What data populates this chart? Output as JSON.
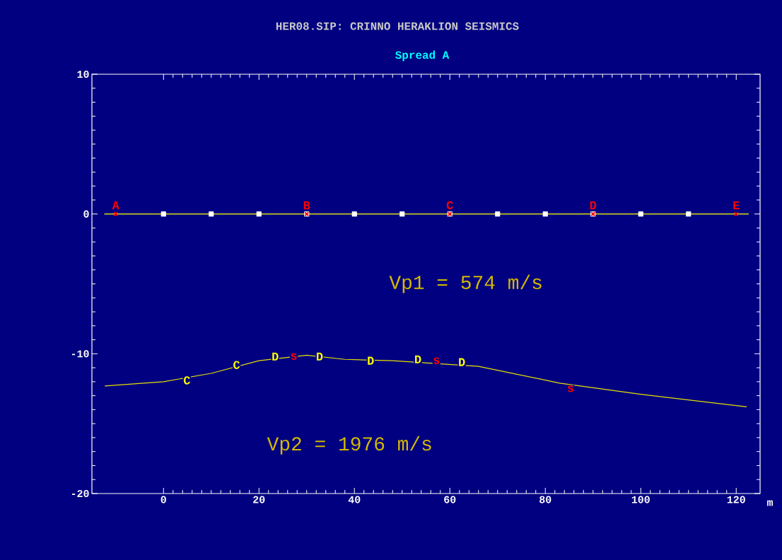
{
  "chart_data": {
    "type": "line",
    "title": "HER08.SIP: CRINNO HERAKLION SEISMICS",
    "subtitle": "Spread A",
    "xlabel": "m",
    "xlim": [
      -15,
      125
    ],
    "ylim": [
      -20,
      10
    ],
    "xticks": [
      0,
      20,
      40,
      60,
      80,
      100,
      120
    ],
    "yticks": [
      -20,
      -10,
      0,
      10
    ],
    "series": [
      {
        "color": "#ffff00",
        "marker": "none",
        "x": [
          -12.4,
          122.6
        ],
        "values": [
          0,
          0
        ]
      },
      {
        "type": "scatter",
        "color": "#ffffff",
        "marker": "square",
        "x": [
          0,
          10,
          20,
          30,
          40,
          50,
          60,
          70,
          80,
          90,
          100,
          110
        ],
        "values": [
          0,
          0,
          0,
          0,
          0,
          0,
          0,
          0,
          0,
          0,
          0,
          0
        ]
      },
      {
        "type": "scatter",
        "color": "#ff0000",
        "marker": "cross",
        "x": [
          -10,
          30,
          60,
          90,
          120
        ],
        "values": [
          0,
          0,
          0,
          0,
          0
        ]
      },
      {
        "color": "#e8e000",
        "marker": "none",
        "x": [
          -12.3,
          0,
          10,
          20,
          30,
          38,
          48,
          66,
          83,
          100,
          122.2
        ],
        "values": [
          -12.3,
          -12.0,
          -11.4,
          -10.5,
          -10.1,
          -10.4,
          -10.5,
          -10.9,
          -12.1,
          -12.9,
          -13.8
        ]
      }
    ],
    "annotations": [
      {
        "text": "A",
        "x": -10,
        "y": 0
      },
      {
        "text": "B",
        "x": 30,
        "y": 0
      },
      {
        "text": "C",
        "x": 60,
        "y": 0
      },
      {
        "text": "D",
        "x": 90,
        "y": 0
      },
      {
        "text": "E",
        "x": 120,
        "y": 0
      },
      {
        "text": "C",
        "x": 4.9,
        "y": -11.9
      },
      {
        "text": "C",
        "x": 15.3,
        "y": -10.8
      },
      {
        "text": "D",
        "x": 23.4,
        "y": -10.2
      },
      {
        "text": "s",
        "x": 27.3,
        "y": -10.2
      },
      {
        "text": "D",
        "x": 32.7,
        "y": -10.2
      },
      {
        "text": "D",
        "x": 43.4,
        "y": -10.5
      },
      {
        "text": "D",
        "x": 53.3,
        "y": -10.4
      },
      {
        "text": "s",
        "x": 57.2,
        "y": -10.5
      },
      {
        "text": "D",
        "x": 62.5,
        "y": -10.6
      },
      {
        "text": "s",
        "x": 85.3,
        "y": -12.5
      },
      "Vp1 = 574 m/s",
      "Vp2 = 1976 m/s"
    ]
  }
}
